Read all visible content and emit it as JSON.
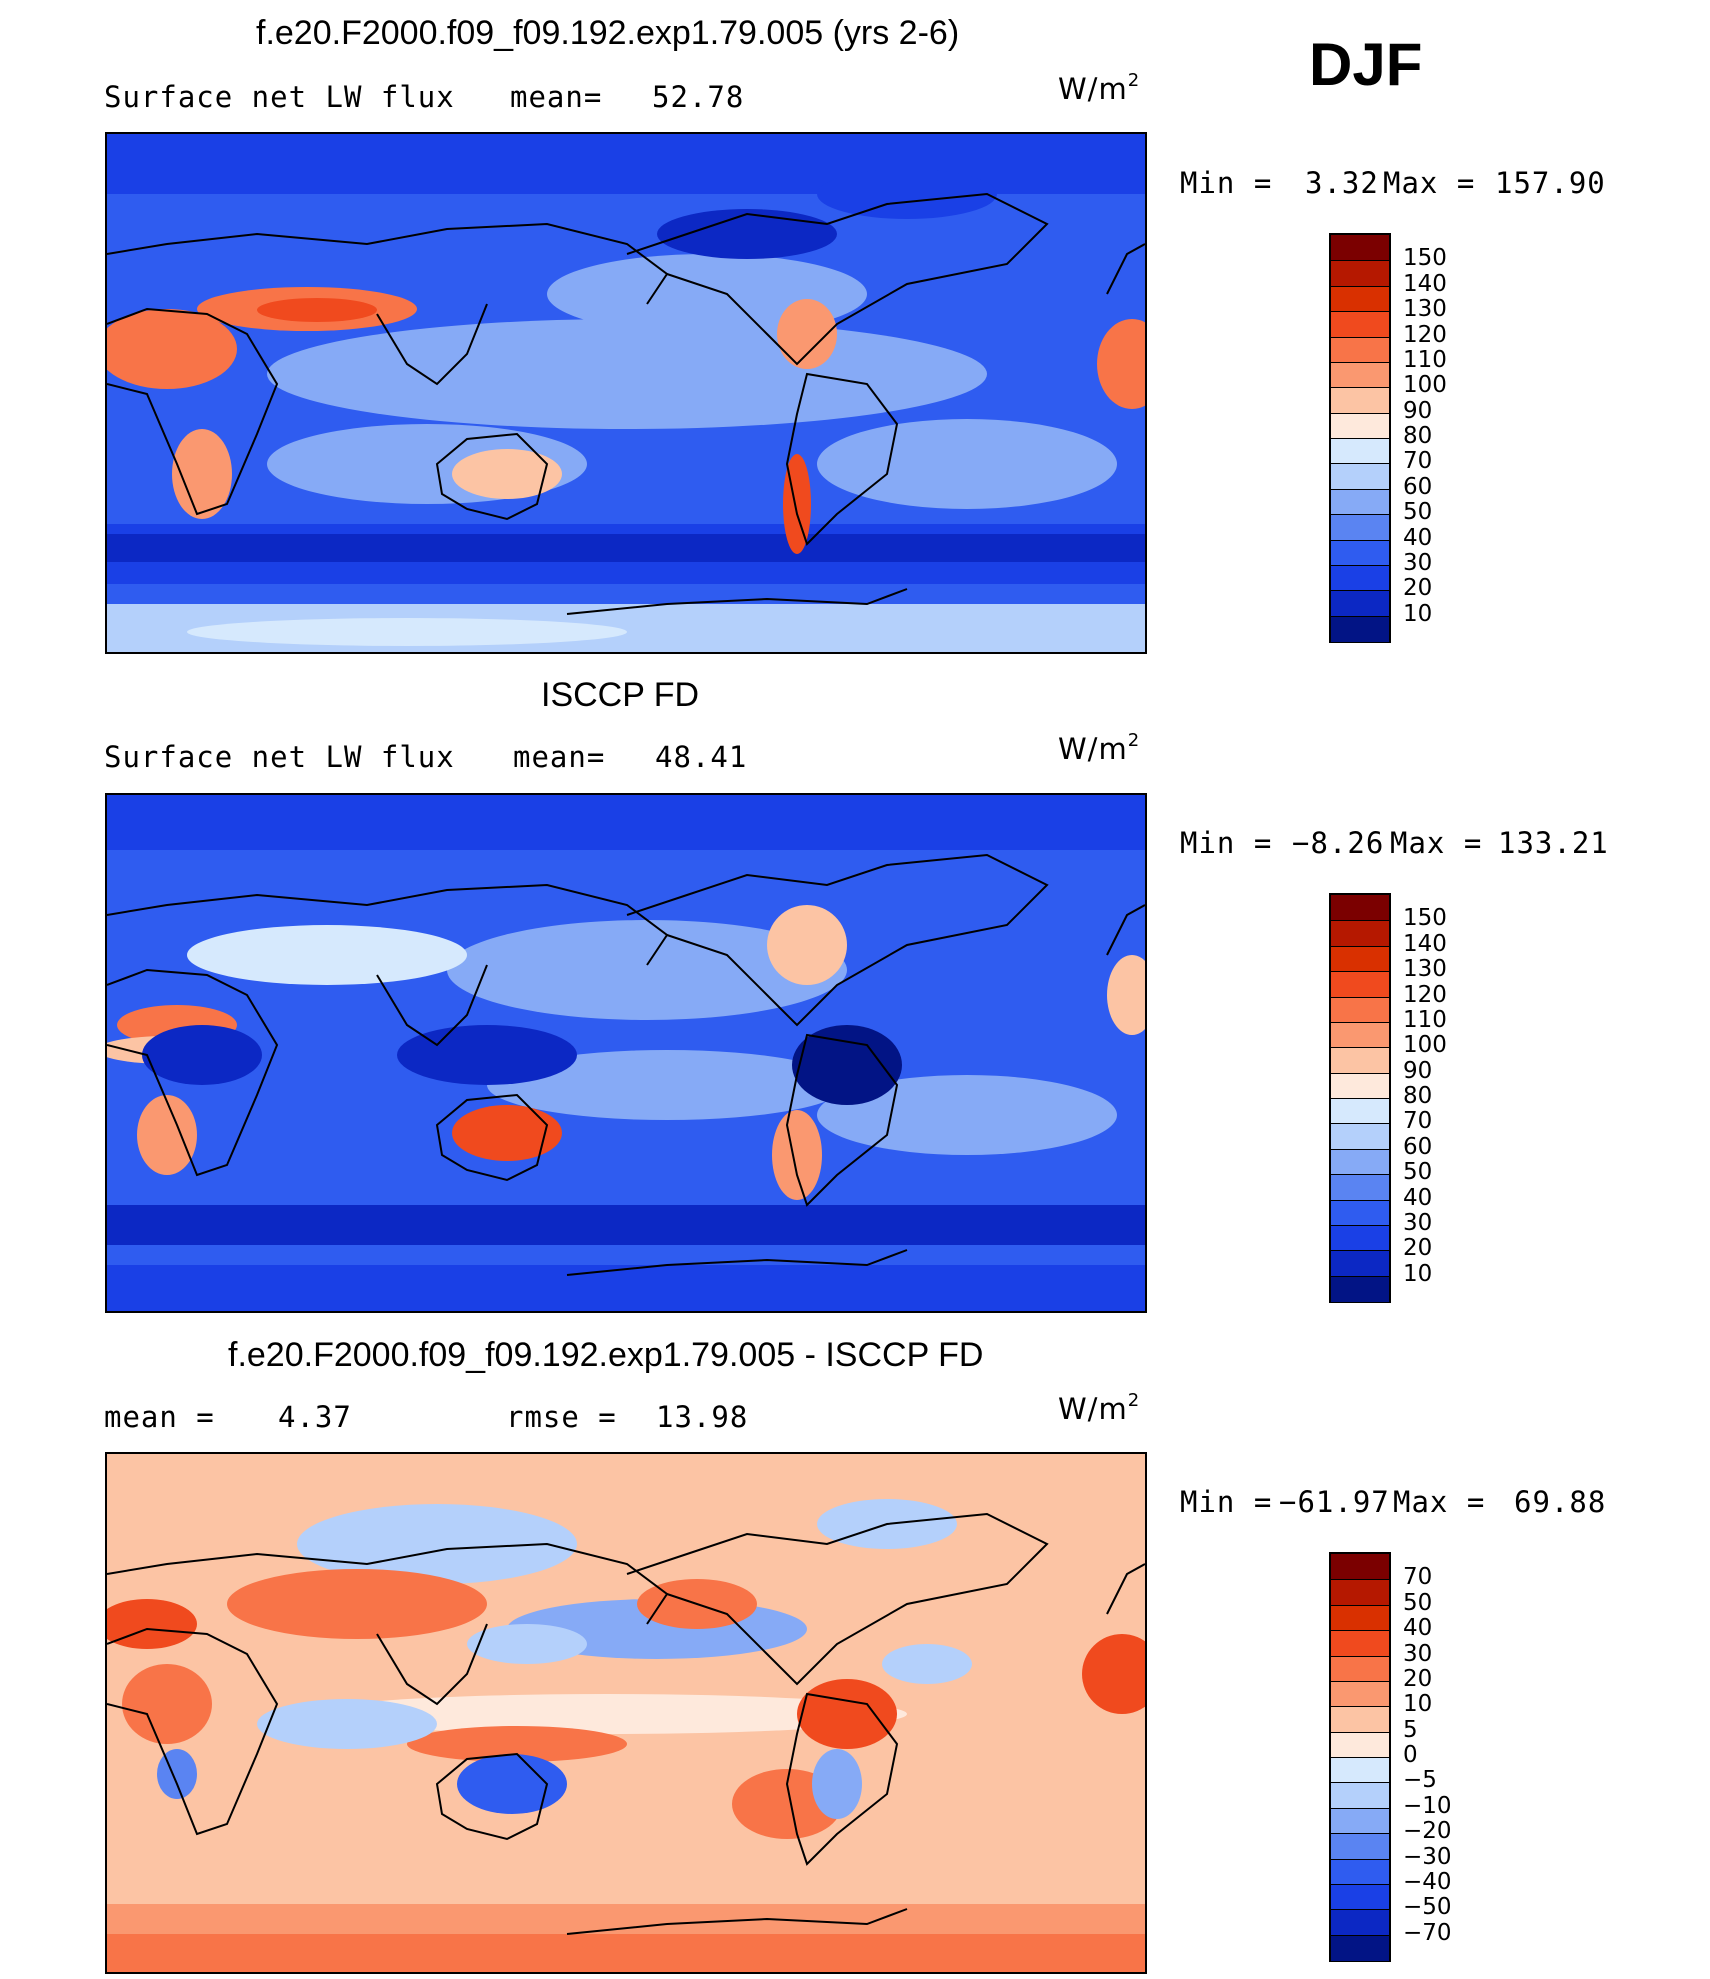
{
  "season": "DJF",
  "panels": [
    {
      "title": "f.e20.F2000.f09_f09.192.exp1.79.005 (yrs 2-6)",
      "left_text": "Surface net LW flux",
      "mean_label": "mean=",
      "mean_value": "52.78",
      "unit_base": "W/m",
      "unit_sup": "2",
      "min_label": "Min =",
      "min_value": "3.32",
      "max_label": "Max =",
      "max_value": "157.90",
      "colorbar_labels": [
        "150",
        "140",
        "130",
        "120",
        "110",
        "100",
        "90",
        "80",
        "70",
        "60",
        "50",
        "40",
        "30",
        "20",
        "10"
      ],
      "colorbar_colors": [
        "#7b0000",
        "#b51800",
        "#d93000",
        "#f04a1e",
        "#f87448",
        "#fa9870",
        "#fcc4a4",
        "#fee9dc",
        "#d6e9fd",
        "#b4d0fb",
        "#86aaf6",
        "#5a84f2",
        "#2f5cf0",
        "#1a40e6",
        "#0c28c4",
        "#021485"
      ]
    },
    {
      "title": "ISCCP FD",
      "left_text": "Surface net LW flux",
      "mean_label": "mean=",
      "mean_value": "48.41",
      "unit_base": "W/m",
      "unit_sup": "2",
      "min_label": "Min =",
      "min_value": "−8.26",
      "max_label": "Max =",
      "max_value": "133.21",
      "colorbar_labels": [
        "150",
        "140",
        "130",
        "120",
        "110",
        "100",
        "90",
        "80",
        "70",
        "60",
        "50",
        "40",
        "30",
        "20",
        "10"
      ],
      "colorbar_colors": [
        "#7b0000",
        "#b51800",
        "#d93000",
        "#f04a1e",
        "#f87448",
        "#fa9870",
        "#fcc4a4",
        "#fee9dc",
        "#d6e9fd",
        "#b4d0fb",
        "#86aaf6",
        "#5a84f2",
        "#2f5cf0",
        "#1a40e6",
        "#0c28c4",
        "#021485"
      ]
    },
    {
      "title": "f.e20.F2000.f09_f09.192.exp1.79.005 - ISCCP FD",
      "mean_label": "mean =",
      "mean_value": "4.37",
      "rmse_label": "rmse =",
      "rmse_value": "13.98",
      "unit_base": "W/m",
      "unit_sup": "2",
      "min_label": "Min =",
      "min_value": "−61.97",
      "max_label": "Max =",
      "max_value": "69.88",
      "colorbar_labels": [
        "70",
        "50",
        "40",
        "30",
        "20",
        "10",
        "5",
        "0",
        "−5",
        "−10",
        "−20",
        "−30",
        "−40",
        "−50",
        "−70"
      ],
      "colorbar_colors": [
        "#7b0000",
        "#b51800",
        "#d93000",
        "#f04a1e",
        "#f87448",
        "#fa9870",
        "#fcc4a4",
        "#fee9dc",
        "#d6e9fd",
        "#b4d0fb",
        "#86aaf6",
        "#5a84f2",
        "#2f5cf0",
        "#1a40e6",
        "#0c28c4",
        "#021485"
      ]
    }
  ]
}
